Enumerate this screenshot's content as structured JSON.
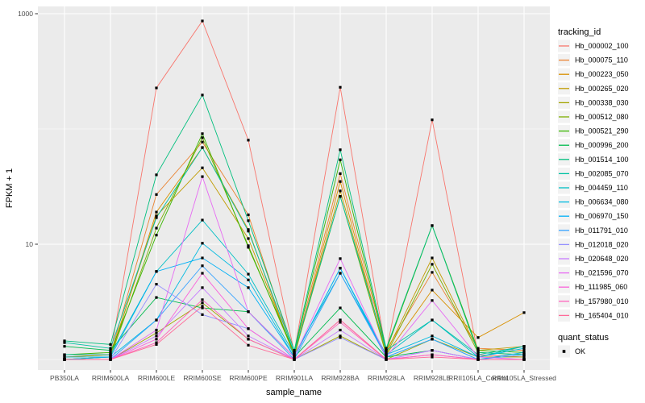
{
  "chart_data": {
    "type": "line",
    "title": "",
    "xlabel": "sample_name",
    "ylabel": "FPKM + 1",
    "x_scale": "discrete",
    "y_scale": "log10",
    "ylim": [
      0.8,
      1300
    ],
    "grid": true,
    "legend_position": "right",
    "panel_bg": "#EBEBEB",
    "grid_color": "#FFFFFF",
    "tick_color": "#333333",
    "tick_label_color": "#4D4D4D",
    "point_color": "#000000",
    "legend_key_bg": "#F2F2F2",
    "y_ticks": [
      {
        "value": 10,
        "label": "10"
      },
      {
        "value": 1000,
        "label": "1000"
      }
    ],
    "y_minor_gridlines": [
      1,
      100
    ],
    "legend": {
      "tracking_title": "tracking_id",
      "quant_title": "quant_status",
      "quant_items": [
        "OK"
      ]
    },
    "categories": [
      "PB350LA",
      "RRIM600LA",
      "RRIM600LE",
      "RRIM600SE",
      "RRIM600PE",
      "RRIM901LA",
      "RRIM928BA",
      "RRIM928LA",
      "RRIM928LE",
      "RRII105LA_Control",
      "RRII105LA_Stressed"
    ],
    "series": [
      {
        "name": "Hb_000002_100",
        "color": "#F8766D",
        "values": [
          1.1,
          1.1,
          227,
          865,
          80,
          1.15,
          230,
          1.15,
          120,
          1.1,
          1.05
        ]
      },
      {
        "name": "Hb_000075_110",
        "color": "#EA8331",
        "values": [
          1.05,
          1.1,
          27,
          77,
          18,
          1.1,
          41,
          1.2,
          5.7,
          1.25,
          1.2
        ]
      },
      {
        "name": "Hb_000223_050",
        "color": "#D89000",
        "values": [
          1.0,
          1.05,
          19,
          69,
          13.4,
          1.05,
          35,
          1.1,
          4.0,
          1.55,
          2.55
        ]
      },
      {
        "name": "Hb_000265_020",
        "color": "#C09B00",
        "values": [
          1.05,
          1.1,
          17.6,
          46,
          11.2,
          1.1,
          29,
          1.15,
          7.6,
          1.2,
          1.3
        ]
      },
      {
        "name": "Hb_000338_030",
        "color": "#A3A500",
        "values": [
          1.0,
          1.0,
          1.7,
          3.1,
          1.5,
          1.0,
          1.6,
          1.0,
          1.5,
          1.05,
          1.05
        ]
      },
      {
        "name": "Hb_000512_080",
        "color": "#7CAE00",
        "values": [
          1.0,
          1.05,
          13.8,
          84,
          9.7,
          1.1,
          26,
          1.1,
          6.7,
          1.15,
          1.1
        ]
      },
      {
        "name": "Hb_000521_290",
        "color": "#39B600",
        "values": [
          1.1,
          1.15,
          12.0,
          91,
          9.4,
          1.15,
          54,
          1.2,
          14.5,
          1.2,
          1.15
        ]
      },
      {
        "name": "Hb_000996_200",
        "color": "#00BB4E",
        "values": [
          1.3,
          1.2,
          3.45,
          2.8,
          2.6,
          1.05,
          2.8,
          1.05,
          1.2,
          1.0,
          1.0
        ]
      },
      {
        "name": "Hb_001514_100",
        "color": "#00BF7D",
        "values": [
          1.45,
          1.35,
          40,
          197,
          16,
          1.2,
          66,
          1.25,
          14.5,
          1.15,
          1.1
        ]
      },
      {
        "name": "Hb_002085_070",
        "color": "#00C1A3",
        "values": [
          1.4,
          1.25,
          17,
          69,
          13.0,
          1.15,
          26,
          1.2,
          2.2,
          1.1,
          1.3
        ]
      },
      {
        "name": "Hb_004459_110",
        "color": "#00BFC4",
        "values": [
          1.1,
          1.1,
          5.8,
          16.2,
          5.5,
          1.1,
          5.6,
          1.1,
          2.2,
          1.05,
          1.3
        ]
      },
      {
        "name": "Hb_006634_080",
        "color": "#00BAE0",
        "values": [
          1.05,
          1.05,
          2.2,
          10.2,
          4.9,
          1.05,
          6.2,
          1.1,
          1.6,
          1.05,
          1.25
        ]
      },
      {
        "name": "Hb_006970_150",
        "color": "#00B0F6",
        "values": [
          1.0,
          1.05,
          5.8,
          7.6,
          4.2,
          1.05,
          6.2,
          1.05,
          1.5,
          1.0,
          1.15
        ]
      },
      {
        "name": "Hb_011791_010",
        "color": "#35A2FF",
        "values": [
          1.0,
          1.0,
          2.2,
          6.5,
          2.6,
          1.0,
          5.6,
          1.05,
          1.5,
          1.0,
          1.1
        ]
      },
      {
        "name": "Hb_012018_020",
        "color": "#9590FF",
        "values": [
          1.0,
          1.0,
          4.5,
          2.45,
          1.85,
          1.0,
          1.55,
          1.0,
          1.2,
          1.0,
          1.0
        ]
      },
      {
        "name": "Hb_020648_020",
        "color": "#C77CFF",
        "values": [
          1.0,
          1.0,
          1.6,
          4.2,
          1.6,
          1.0,
          1.8,
          1.0,
          1.2,
          1.0,
          1.0
        ]
      },
      {
        "name": "Hb_021596_070",
        "color": "#E76BF3",
        "values": [
          1.0,
          1.0,
          1.8,
          38.6,
          2.6,
          1.05,
          7.5,
          1.05,
          3.25,
          1.05,
          1.0
        ]
      },
      {
        "name": "Hb_111985_060",
        "color": "#FA62DB",
        "values": [
          1.0,
          1.0,
          1.5,
          5.6,
          1.85,
          1.0,
          2.2,
          1.0,
          1.1,
          1.0,
          1.0
        ]
      },
      {
        "name": "Hb_157980_010",
        "color": "#FF62BC",
        "values": [
          1.0,
          1.0,
          1.4,
          3.3,
          1.5,
          1.0,
          2.1,
          1.0,
          1.1,
          1.0,
          1.0
        ]
      },
      {
        "name": "Hb_165404_010",
        "color": "#FF6A98",
        "values": [
          1.0,
          1.0,
          1.35,
          2.9,
          1.33,
          1.0,
          2.2,
          1.0,
          1.05,
          1.0,
          1.0
        ]
      }
    ]
  }
}
